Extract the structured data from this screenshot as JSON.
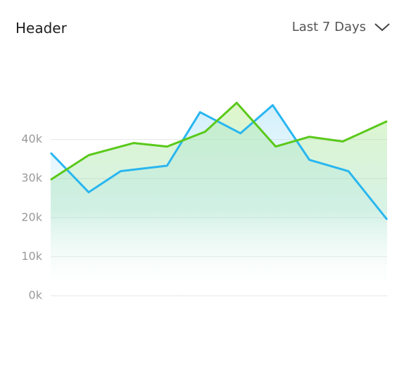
{
  "header": {
    "title": "Header",
    "period": "Last 7 Days"
  },
  "chart_data": {
    "type": "line",
    "xlim": [
      0,
      10
    ],
    "ylim": [
      0,
      50000
    ],
    "yticks": [
      {
        "value": 0,
        "label": "0k"
      },
      {
        "value": 10000,
        "label": "10k"
      },
      {
        "value": 20000,
        "label": "20k"
      },
      {
        "value": 30000,
        "label": "30k"
      },
      {
        "value": 40000,
        "label": "40k"
      }
    ],
    "grid": true,
    "series": [
      {
        "color": "#29b6f0",
        "x": [
          0,
          1.13,
          2.08,
          3.46,
          4.44,
          5.64,
          6.6,
          7.69,
          8.85,
          10
        ],
        "values": [
          36600,
          26500,
          31900,
          33300,
          47000,
          41600,
          48800,
          34800,
          31900,
          19500
        ]
      },
      {
        "color": "#5ac91a",
        "x": [
          0,
          1.13,
          2.47,
          3.46,
          4.59,
          5.53,
          6.69,
          7.69,
          8.68,
          10
        ],
        "values": [
          29700,
          36000,
          39100,
          38200,
          42000,
          49400,
          38200,
          40700,
          39500,
          44700
        ]
      }
    ]
  }
}
